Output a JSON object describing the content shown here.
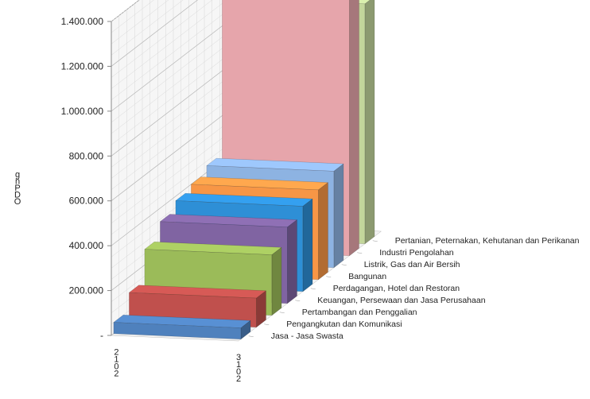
{
  "chart_data": {
    "type": "bar",
    "style": "3d-column-depth",
    "title": "",
    "xlabel": "",
    "ylabel": "",
    "ylabel_glyphs": [
      "g",
      "n",
      "P",
      "D",
      "O"
    ],
    "ylim": [
      0,
      1400000
    ],
    "yticks": [
      "-",
      "200.000",
      "400.000",
      "600.000",
      "800.000",
      "1.000.000",
      "1.200.000",
      "1.400.000"
    ],
    "x_stacked_labels": [
      {
        "chars": [
          "2",
          "1",
          "0",
          "2"
        ]
      },
      {
        "chars": [
          "3",
          "1",
          "0",
          "2"
        ]
      }
    ],
    "grid": true,
    "categories": [
      "Jasa - Jasa Swasta",
      "Pengangkutan dan Komunikasi",
      "Pertambangan dan Penggalian",
      "Keuangan, Persewaan dan Jasa Perusahaan",
      "Perdagangan, Hotel dan Restoran",
      "Bangunan",
      "Listrik, Gas dan Air Bersih",
      "Industri Pengolahan",
      "Pertanian, Peternakan, Kehutanan dan Perikanan"
    ],
    "series": [
      {
        "values": [
          50000,
          130000,
          270000,
          340000,
          380000,
          400000,
          430000,
          1300000,
          1070000
        ]
      },
      {
        "values": [
          50000,
          130000,
          270000,
          340000,
          380000,
          400000,
          430000,
          1300000,
          1070000
        ]
      }
    ],
    "colors": [
      "#4f81bd",
      "#c0504d",
      "#9bbb59",
      "#8064a2",
      "#2e8fd6",
      "#f79646",
      "#8db3e2",
      "#e6a5ab",
      "#c3d69b"
    ]
  }
}
